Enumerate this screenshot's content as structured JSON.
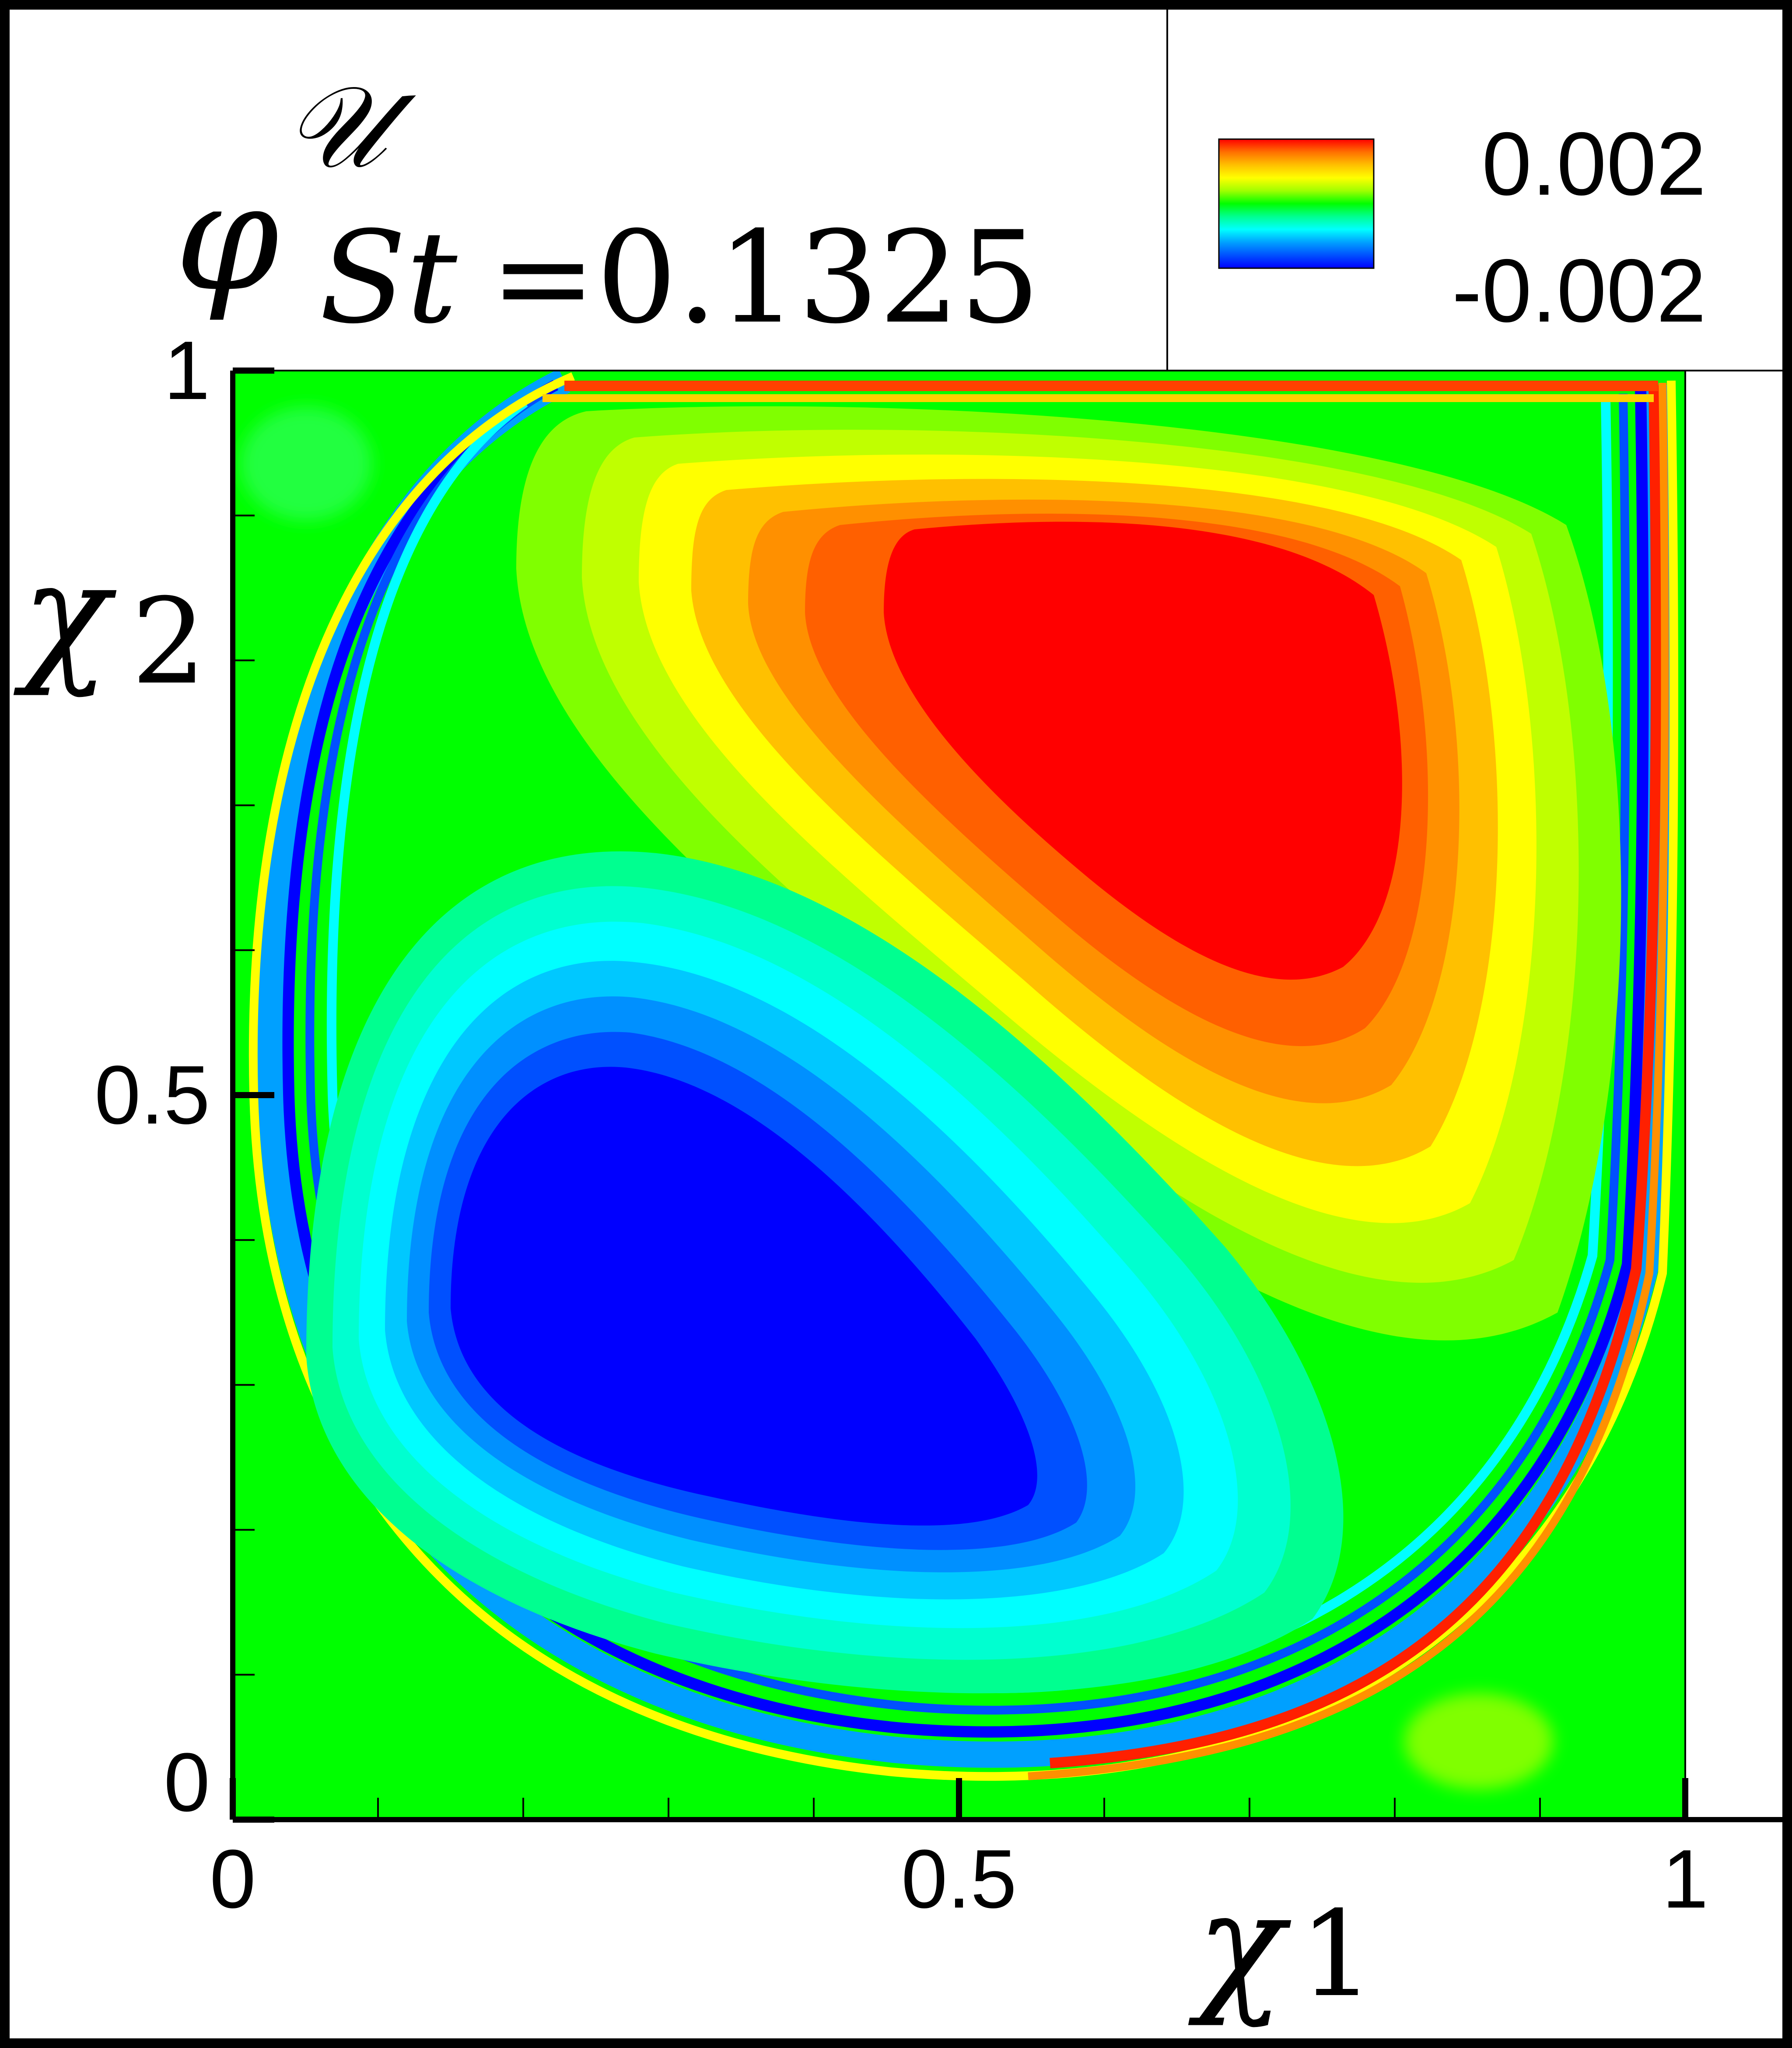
{
  "chart_data": {
    "type": "heatmap",
    "title": {
      "symbol": "φ",
      "superscript": "𝒰",
      "subscript_var": "St",
      "subscript_eq": "=0.1325"
    },
    "xlabel": {
      "symbol": "χ",
      "subscript": "1"
    },
    "ylabel": {
      "symbol": "χ",
      "subscript": "2"
    },
    "xlim": [
      0,
      1
    ],
    "ylim": [
      0,
      1
    ],
    "x_tick_labels": [
      {
        "value": 0,
        "label": "0"
      },
      {
        "value": 0.5,
        "label": "0.5"
      },
      {
        "value": 1,
        "label": "1"
      }
    ],
    "y_tick_labels": [
      {
        "value": 0,
        "label": "0"
      },
      {
        "value": 0.5,
        "label": "0.5"
      },
      {
        "value": 1,
        "label": "1"
      }
    ],
    "minor_tick_step": 0.1,
    "colorbar": {
      "max_label": "0.002",
      "min_label": "-0.002",
      "vmin": -0.002,
      "vmax": 0.002,
      "placement": "top-right",
      "colors": [
        "#0000ff",
        "#0050ff",
        "#00a0ff",
        "#00ffff",
        "#00ff90",
        "#00ff00",
        "#a0ff00",
        "#ffff00",
        "#ffc000",
        "#ff7000",
        "#ff0000"
      ]
    },
    "field_description_values": {
      "positive_lobe_center": [
        0.75,
        0.78
      ],
      "negative_lobe_center": [
        0.35,
        0.22
      ],
      "peak_value": 0.002,
      "trough_value": -0.002,
      "background_value": 0.0
    },
    "grid": false
  }
}
